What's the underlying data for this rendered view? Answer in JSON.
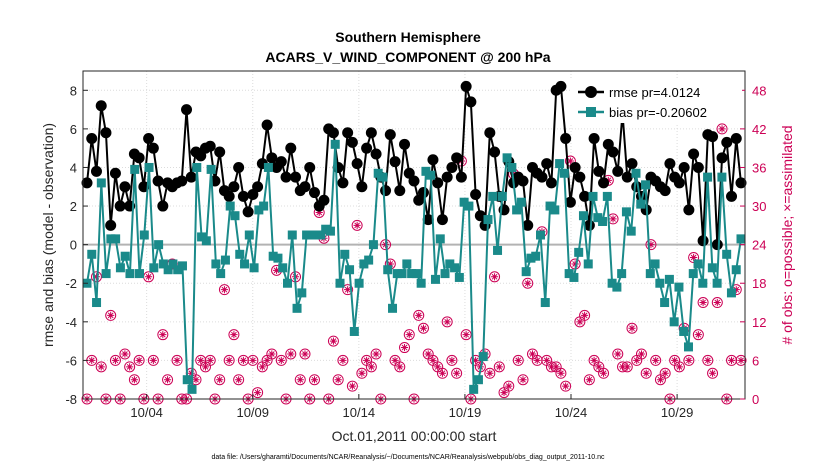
{
  "chart_data": {
    "type": "line",
    "title": "Southern Hemisphere",
    "subtitle": "ACARS_V_WIND_COMPONENT @ 200 hPa",
    "xlabel": "Oct.01,2011 00:00:00 start",
    "ylabel_left": "rmse and bias (model - observation)",
    "ylabel_right": "# of obs: o=possible; ×=assimilated",
    "footnote": "data file: /Users/gharamti/Documents/NCAR/Reanalysis/~/Documents/NCAR/Reanalysis/webpub/obs_diag_output_2011-10.nc",
    "x_ticks": [
      "10/04",
      "10/09",
      "10/14",
      "10/19",
      "10/24",
      "10/29"
    ],
    "x_tick_days": [
      4,
      9,
      14,
      19,
      24,
      29
    ],
    "xlim_days": [
      1,
      32.2
    ],
    "ylim_left": [
      -8,
      9
    ],
    "yticks_left": [
      -8,
      -6,
      -4,
      -2,
      0,
      2,
      4,
      6,
      8
    ],
    "ylim_right": [
      0,
      51
    ],
    "yticks_right": [
      0,
      6,
      12,
      18,
      24,
      30,
      36,
      42,
      48
    ],
    "grid": true,
    "legend_position": "top-right",
    "zero_line": 0,
    "colors": {
      "rmse": "#000000",
      "bias": "#1a8a8a",
      "obs": "#cc0055",
      "zero": "#b3b3b3"
    },
    "series": [
      {
        "name": "rmse pr=4.0124",
        "axis": "left",
        "values": [
          3.2,
          5.5,
          3.8,
          7.2,
          5.8,
          1.0,
          3.7,
          2.0,
          3.0,
          2.0,
          4.7,
          4.5,
          3.0,
          5.5,
          5.0,
          3.3,
          2.0,
          3.2,
          3.0,
          3.2,
          3.3,
          7.0,
          3.5,
          4.8,
          4.6,
          5.0,
          5.1,
          3.3,
          4.8,
          2.8,
          2.5,
          3.0,
          4.0,
          2.5,
          1.7,
          2.6,
          3.0,
          4.2,
          6.2,
          4.5,
          4.0,
          4.3,
          3.5,
          5.0,
          3.5,
          2.8,
          3.0,
          4.0,
          2.7,
          2.0,
          2.3,
          6.0,
          5.8,
          4.0,
          3.2,
          5.8,
          5.3,
          4.2,
          3.0,
          5.0,
          5.8,
          4.7,
          3.5,
          2.8,
          5.7,
          4.3,
          2.8,
          5.2,
          3.7,
          3.3,
          2.3,
          2.7,
          1.3,
          4.4,
          3.2,
          1.3,
          3.5,
          4.0,
          4.5,
          3.5,
          8.2,
          7.4,
          2.6,
          1.5,
          1.0,
          5.8,
          4.8,
          2.5,
          1.8,
          4.3,
          3.2,
          3.5,
          3.3,
          1.0,
          4.0,
          3.7,
          3.5,
          4.2,
          3.2,
          8.0,
          8.2,
          5.5,
          2.2,
          4.0,
          3.5,
          2.5,
          1.0,
          5.5,
          3.8,
          3.2,
          5.2,
          4.8,
          3.8,
          6.8,
          3.5,
          4.2,
          3.0,
          2.5,
          1.8,
          3.5,
          3.3,
          3.0,
          2.8,
          4.2,
          3.5,
          3.2,
          4.0,
          1.8,
          4.7,
          4.0,
          0.2,
          5.7,
          5.6,
          0.0,
          4.5,
          5.3,
          2.5,
          5.5,
          3.2
        ]
      },
      {
        "name": "bias pr=-0.20602",
        "axis": "left",
        "values": [
          -2.0,
          -0.5,
          -3.0,
          3.2,
          -1.5,
          0.3,
          0.3,
          -1.2,
          -0.6,
          -1.5,
          3.9,
          -1.5,
          0.5,
          4.0,
          -1.2,
          0.0,
          -1.0,
          -1.3,
          -1.0,
          -1.3,
          -1.1,
          -7.0,
          -7.5,
          4.0,
          0.4,
          0.2,
          3.9,
          -1.0,
          -1.5,
          -0.8,
          2.0,
          1.5,
          -0.5,
          -1.0,
          0.5,
          -1.2,
          1.8,
          2.0,
          4.0,
          -0.6,
          -0.7,
          -1.2,
          -2.0,
          0.5,
          -3.3,
          -2.5,
          0.5,
          0.5,
          0.5,
          0.5,
          0.8,
          0.7,
          5.2,
          -2.0,
          -0.5,
          -1.3,
          -4.5,
          -2.0,
          -1.0,
          -0.8,
          0.0,
          3.7,
          3.5,
          -1.3,
          -3.3,
          -1.5,
          -1.5,
          -1.0,
          -1.5,
          -1.5,
          -2.0,
          3.8,
          3.6,
          -1.8,
          0.3,
          -1.5,
          -1.0,
          -1.2,
          -1.7,
          2.2,
          2.0,
          -7.5,
          -7.0,
          -5.8,
          1.3,
          2.5,
          -0.3,
          2.5,
          4.5,
          4.0,
          1.8,
          2.2,
          -1.4,
          -0.7,
          -0.6,
          0.5,
          -3.0,
          2.0,
          1.8,
          4.2,
          3.7,
          -1.5,
          -1.7,
          -0.4,
          1.5,
          -1.0,
          2.5,
          1.4,
          1.2,
          2.5,
          -2.0,
          -2.2,
          -1.5,
          1.7,
          0.7,
          3.7,
          2.1,
          3.1,
          -1.5,
          -1.0,
          -2.0,
          -3.0,
          -1.8,
          -4.0,
          -2.2,
          -4.5,
          -5.3,
          -1.5,
          -1.0,
          -2.0,
          3.5,
          -1.2,
          -2.0,
          3.5,
          -0.5,
          -2.5,
          -1.3,
          0.3
        ]
      },
      {
        "name": "obs possible",
        "axis": "right",
        "values": [
          0,
          6,
          19,
          5,
          0,
          13,
          6,
          0,
          7,
          5,
          3,
          6,
          0,
          19,
          6,
          0,
          10,
          3,
          21,
          6,
          0,
          0,
          4,
          3,
          6,
          5,
          6,
          0,
          3,
          17,
          6,
          10,
          3,
          6,
          0,
          6,
          1,
          5,
          6,
          7,
          20,
          6,
          0,
          7,
          19,
          3,
          7,
          0,
          3,
          29,
          25,
          0,
          9,
          3,
          6,
          17,
          2,
          27,
          4,
          6,
          5,
          7,
          0,
          24,
          21,
          6,
          5,
          8,
          10,
          0,
          13,
          11,
          7,
          6,
          5,
          4,
          12,
          6,
          4,
          37,
          10,
          0,
          6,
          5,
          7,
          4,
          19,
          5,
          1,
          2,
          35,
          6,
          3,
          18,
          7,
          6,
          26,
          6,
          5,
          5,
          4,
          2,
          37,
          21,
          12,
          13,
          3,
          6,
          5,
          4,
          34,
          28,
          7,
          5,
          5,
          11,
          6,
          7,
          4,
          24,
          6,
          3,
          4,
          0,
          6,
          5,
          11,
          6,
          22,
          10,
          15,
          6,
          4,
          15,
          42,
          0,
          6,
          17,
          6
        ]
      }
    ]
  }
}
